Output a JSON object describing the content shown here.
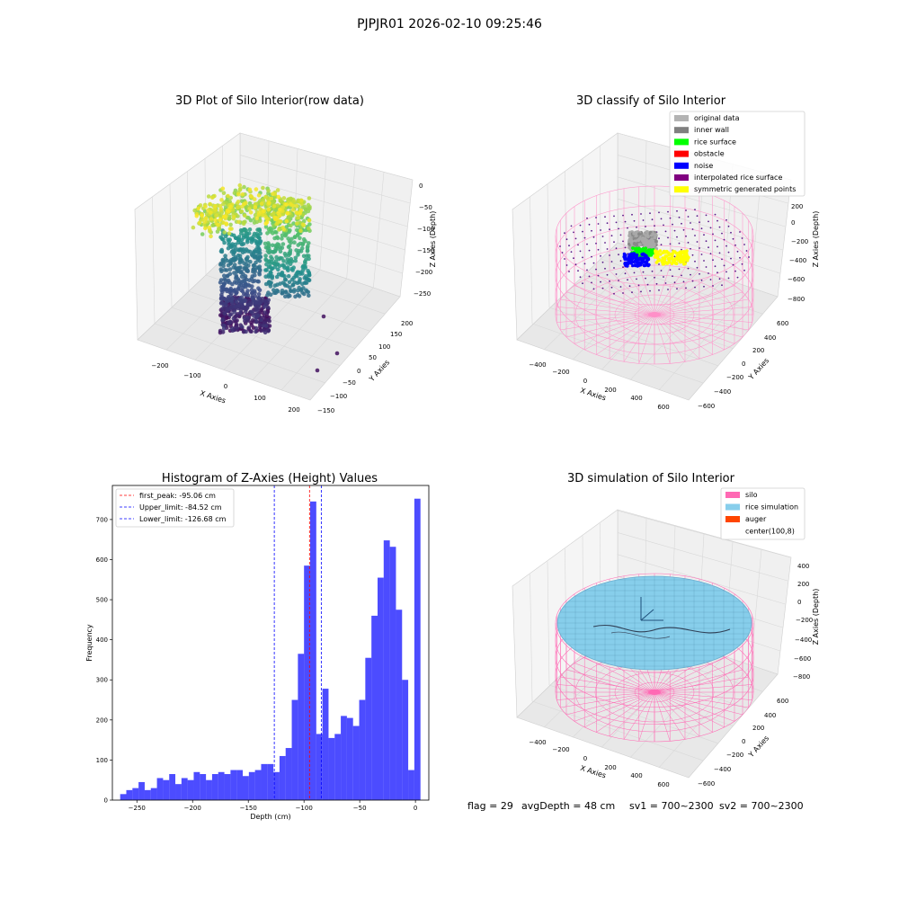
{
  "figure": {
    "suptitle": "PJPJR01 2026-02-10 09:25:46",
    "status": {
      "flag": "flag = 29",
      "avg_depth": "avgDepth = 48 cm",
      "sv1": "sv1 = 700~2300",
      "sv2": "sv2 = 700~2300"
    }
  },
  "chart_data": [
    {
      "type": "scatter",
      "title": "3D Plot of Silo Interior(row data)",
      "xlabel": "X Axies",
      "ylabel": "Y Axies",
      "zlabel": "Z Axies (Depth)",
      "xticks": [
        "−200",
        "−100",
        "0",
        "100",
        "200"
      ],
      "yticks": [
        "−150",
        "−100",
        "−50",
        "0",
        "50",
        "100",
        "150",
        "200"
      ],
      "zticks": [
        "0",
        "−50",
        "−100",
        "−150",
        "−200",
        "−250"
      ],
      "colormap": "viridis"
    },
    {
      "type": "scatter",
      "title": "3D classify of Silo Interior",
      "xlabel": "X Axies",
      "ylabel": "Y Axies",
      "zlabel": "Z Axies (Depth)",
      "xticks": [
        "−400",
        "−200",
        "0",
        "200",
        "400",
        "600"
      ],
      "yticks": [
        "−600",
        "−400",
        "−200",
        "0",
        "200",
        "400",
        "600"
      ],
      "zticks": [
        "200",
        "0",
        "−200",
        "−400",
        "−600",
        "−800"
      ],
      "legend_position": "top-right",
      "legend": [
        {
          "label": "original data",
          "color": "#b3b3b3"
        },
        {
          "label": "inner wall",
          "color": "#808080"
        },
        {
          "label": "rice surface",
          "color": "#00ff00"
        },
        {
          "label": "obstacle",
          "color": "#ff0000"
        },
        {
          "label": "noise",
          "color": "#0000ff"
        },
        {
          "label": "interpolated rice surface",
          "color": "#800080"
        },
        {
          "label": "symmetric generated points",
          "color": "#ffff00"
        }
      ]
    },
    {
      "type": "bar",
      "title": "Histogram of Z-Axies (Height) Values",
      "xlabel": "Depth (cm)",
      "ylabel": "Frequency",
      "xlim": [
        -272,
        12
      ],
      "ylim": [
        0,
        785
      ],
      "xticks": [
        -250,
        -200,
        -150,
        -100,
        -50,
        0
      ],
      "yticks": [
        0,
        100,
        200,
        300,
        400,
        500,
        600,
        700
      ],
      "bar_color": "#0000ff",
      "bin_edges_start": -265,
      "bin_width": 5.5,
      "values": [
        15,
        25,
        30,
        45,
        25,
        30,
        55,
        50,
        65,
        40,
        55,
        50,
        70,
        65,
        50,
        65,
        70,
        65,
        75,
        75,
        60,
        70,
        75,
        90,
        90,
        70,
        110,
        130,
        250,
        365,
        585,
        745,
        165,
        278,
        155,
        165,
        210,
        205,
        185,
        250,
        355,
        460,
        555,
        648,
        632,
        475,
        300,
        75,
        752
      ],
      "lines": [
        {
          "label": "first_peak: -95.06 cm",
          "x": -95.06,
          "color": "#ff0000"
        },
        {
          "label": "Upper_limit: -84.52 cm",
          "x": -84.52,
          "color": "#0000ff"
        },
        {
          "label": "Lower_limit: -126.68 cm",
          "x": -126.68,
          "color": "#0000ff"
        }
      ],
      "legend_position": "top-left"
    },
    {
      "type": "surface",
      "title": "3D simulation of Silo Interior",
      "xlabel": "X Axies",
      "ylabel": "Y Axies",
      "zlabel": "Z Axies (Depth)",
      "xticks": [
        "−400",
        "−200",
        "0",
        "200",
        "400",
        "600"
      ],
      "yticks": [
        "−600",
        "−400",
        "−200",
        "0",
        "200",
        "400",
        "600"
      ],
      "zticks": [
        "400",
        "200",
        "0",
        "−200",
        "−400",
        "−600",
        "−800"
      ],
      "legend_position": "top-right",
      "legend": [
        {
          "label": "silo",
          "color": "#ff69b4"
        },
        {
          "label": "rice simulation",
          "color": "#87ceeb"
        },
        {
          "label": "auger",
          "color": "#ff4500"
        },
        {
          "label": "center(100,8)",
          "color": "#ffffff"
        }
      ]
    }
  ]
}
